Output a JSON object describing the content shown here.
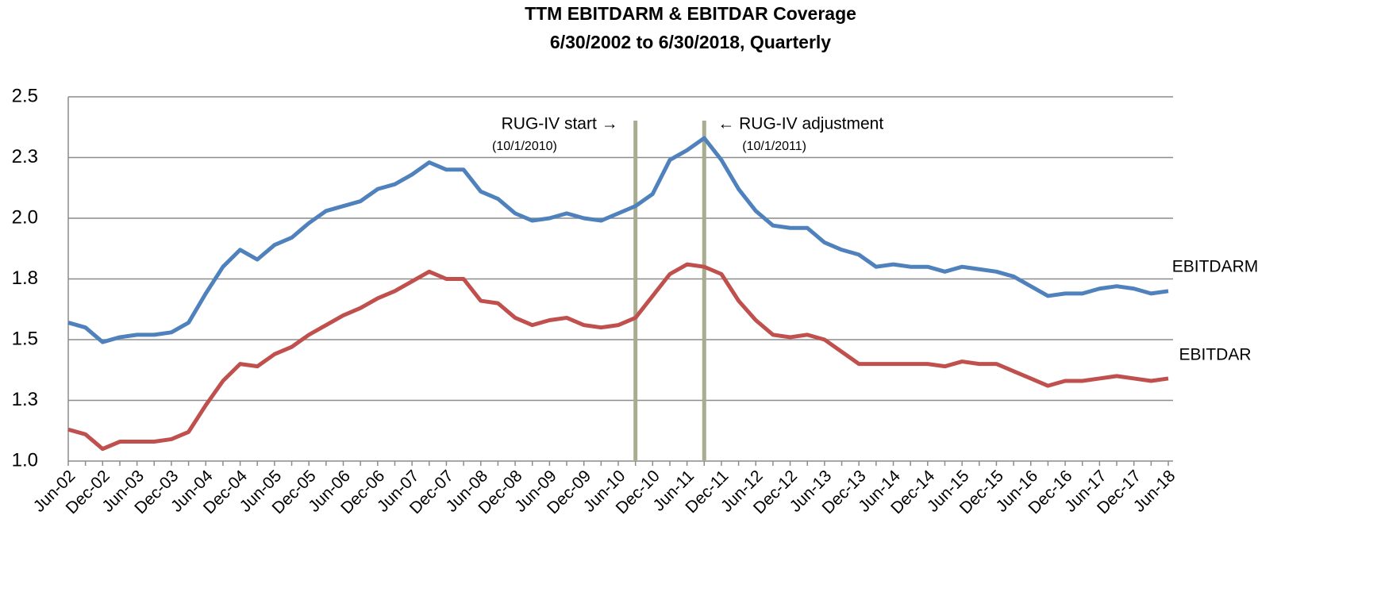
{
  "chart_data": {
    "type": "line",
    "title": "TTM EBITDARM & EBITDAR Coverage",
    "subtitle": "6/30/2002 to 6/30/2018, Quarterly",
    "categories": [
      "Jun-02",
      null,
      "Dec-02",
      null,
      "Jun-03",
      null,
      "Dec-03",
      null,
      "Jun-04",
      null,
      "Dec-04",
      null,
      "Jun-05",
      null,
      "Dec-05",
      null,
      "Jun-06",
      null,
      "Dec-06",
      null,
      "Jun-07",
      null,
      "Dec-07",
      null,
      "Jun-08",
      null,
      "Dec-08",
      null,
      "Jun-09",
      null,
      "Dec-09",
      null,
      "Jun-10",
      null,
      "Dec-10",
      null,
      "Jun-11",
      null,
      "Dec-11",
      null,
      "Jun-12",
      null,
      "Dec-12",
      null,
      "Jun-13",
      null,
      "Dec-13",
      null,
      "Jun-14",
      null,
      "Dec-14",
      null,
      "Jun-15",
      null,
      "Dec-15",
      null,
      "Jun-16",
      null,
      "Dec-16",
      null,
      "Jun-17",
      null,
      "Dec-17",
      null,
      "Jun-18"
    ],
    "series": [
      {
        "name": "EBITDARM",
        "color": "#4f81bd",
        "values": [
          1.57,
          1.55,
          1.49,
          1.51,
          1.52,
          1.52,
          1.53,
          1.57,
          1.69,
          1.8,
          1.87,
          1.83,
          1.89,
          1.92,
          1.98,
          2.03,
          2.05,
          2.07,
          2.12,
          2.14,
          2.18,
          2.23,
          2.2,
          2.2,
          2.11,
          2.08,
          2.02,
          1.99,
          2.0,
          2.02,
          2.0,
          1.99,
          2.02,
          2.05,
          2.1,
          2.24,
          2.28,
          2.33,
          2.24,
          2.12,
          2.03,
          1.97,
          1.96,
          1.96,
          1.9,
          1.87,
          1.85,
          1.8,
          1.81,
          1.8,
          1.8,
          1.78,
          1.8,
          1.79,
          1.78,
          1.76,
          1.72,
          1.68,
          1.69,
          1.69,
          1.71,
          1.72,
          1.71,
          1.69,
          1.7
        ]
      },
      {
        "name": "EBITDAR",
        "color": "#c0504d",
        "values": [
          1.13,
          1.11,
          1.05,
          1.08,
          1.08,
          1.08,
          1.09,
          1.12,
          1.23,
          1.33,
          1.4,
          1.39,
          1.44,
          1.47,
          1.52,
          1.56,
          1.6,
          1.63,
          1.67,
          1.7,
          1.74,
          1.78,
          1.75,
          1.75,
          1.66,
          1.65,
          1.59,
          1.56,
          1.58,
          1.59,
          1.56,
          1.55,
          1.56,
          1.59,
          1.68,
          1.77,
          1.81,
          1.8,
          1.77,
          1.66,
          1.58,
          1.52,
          1.51,
          1.52,
          1.5,
          1.45,
          1.4,
          1.4,
          1.4,
          1.4,
          1.4,
          1.39,
          1.41,
          1.4,
          1.4,
          1.37,
          1.34,
          1.31,
          1.33,
          1.33,
          1.34,
          1.35,
          1.34,
          1.33,
          1.34
        ]
      }
    ],
    "ylim": [
      1.0,
      2.5
    ],
    "yticks": [
      {
        "value": 1.0,
        "label": "1.0"
      },
      {
        "value": 1.25,
        "label": "1.3"
      },
      {
        "value": 1.5,
        "label": "1.5"
      },
      {
        "value": 1.75,
        "label": "1.8"
      },
      {
        "value": 2.0,
        "label": "2.0"
      },
      {
        "value": 2.25,
        "label": "2.3"
      },
      {
        "value": 2.5,
        "label": "2.5"
      }
    ],
    "grid": true,
    "annotations": [
      {
        "text": "RUG-IV start →",
        "subtext": "(10/1/2010)"
      },
      {
        "text": "← RUG-IV adjustment",
        "subtext": "(10/1/2011)"
      }
    ]
  }
}
